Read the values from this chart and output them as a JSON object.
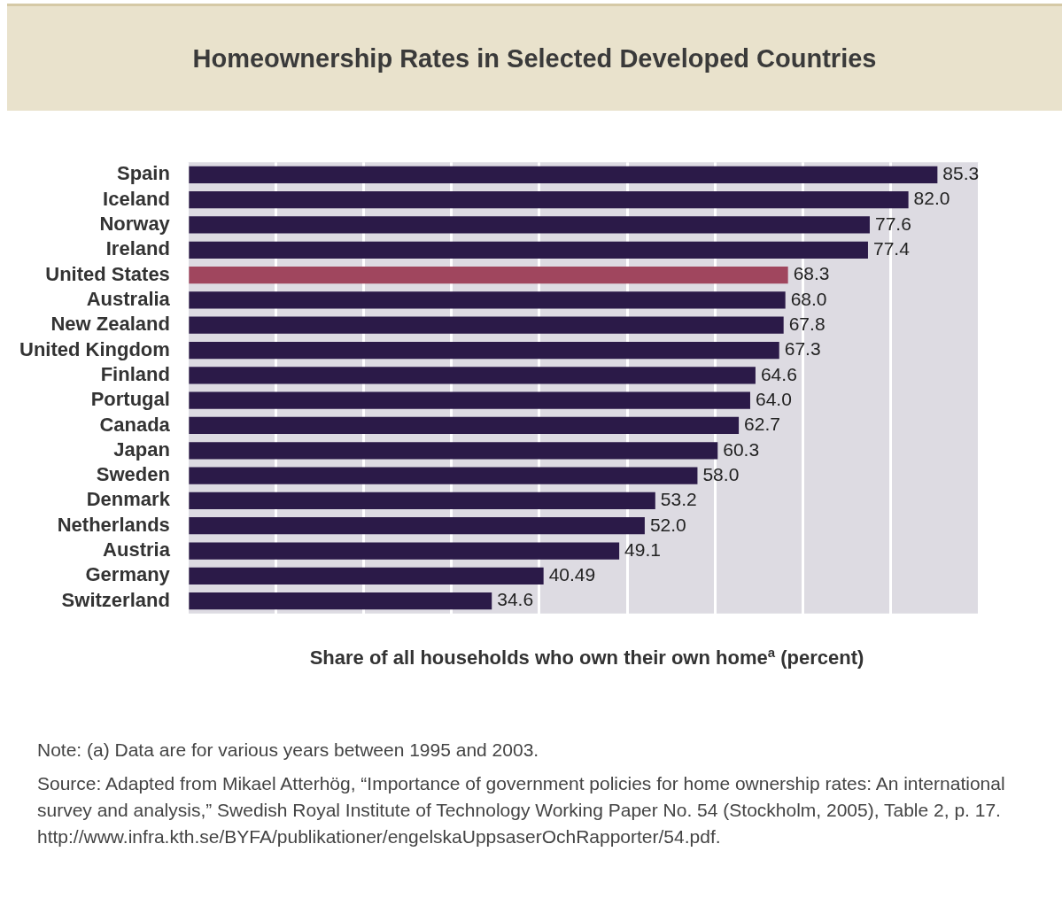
{
  "chart_data": {
    "type": "bar",
    "orientation": "horizontal",
    "title": "Homeownership Rates in Selected Developed Countries",
    "xlabel": "Share of all households who own their own home$^{a}$ (percent)",
    "categories": [
      "Spain",
      "Iceland",
      "Norway",
      "Ireland",
      "United States",
      "Australia",
      "New Zealand",
      "United Kingdom",
      "Finland",
      "Portugal",
      "Canada",
      "Japan",
      "Sweden",
      "Denmark",
      "Netherlands",
      "Austria",
      "Germany",
      "Switzerland"
    ],
    "values": [
      85.3,
      82.0,
      77.6,
      77.4,
      68.3,
      68.0,
      67.8,
      67.3,
      64.6,
      64.0,
      62.7,
      60.3,
      58.0,
      53.2,
      52.0,
      49.1,
      40.49,
      34.6
    ],
    "value_labels": [
      "85.3",
      "82.0",
      "77.6",
      "77.4",
      "68.3",
      "68.0",
      "67.8",
      "67.3",
      "64.6",
      "64.0",
      "62.7",
      "60.3",
      "58.0",
      "53.2",
      "52.0",
      "49.1",
      "40.49",
      "34.6"
    ],
    "colors": [
      "#2b1a48",
      "#2b1a48",
      "#2b1a48",
      "#2b1a48",
      "#a0465e",
      "#2b1a48",
      "#2b1a48",
      "#2b1a48",
      "#2b1a48",
      "#2b1a48",
      "#2b1a48",
      "#2b1a48",
      "#2b1a48",
      "#2b1a48",
      "#2b1a48",
      "#2b1a48",
      "#2b1a48",
      "#2b1a48"
    ],
    "xlim": [
      0,
      90
    ],
    "xticks": [
      {
        "value": 0,
        "label": null
      },
      {
        "value": 10,
        "label": null
      },
      {
        "value": 20,
        "label": null
      },
      {
        "value": 30,
        "label": null
      },
      {
        "value": 40,
        "label": null
      },
      {
        "value": 50,
        "label": null
      },
      {
        "value": 60,
        "label": null
      },
      {
        "value": 70,
        "label": null
      },
      {
        "value": 80,
        "label": null
      },
      {
        "value": 90,
        "label": null
      }
    ],
    "grid": "x",
    "tick_labels": "y",
    "annotations": [
      "Note:  (a) Data are for various years between 1995 and 2003.",
      "Source:  Adapted from Mikael Atterhög, “Importance of government policies for home ownership rates: An international survey and analysis,” Swedish Royal Institute of Technology Working Paper No. 54 (Stockholm, 2005), Table 2, p. 17. http://www.infra.kth.se/BYFA/publikationer/engelskaUppsaserOchRapporter/54.pdf."
    ]
  }
}
